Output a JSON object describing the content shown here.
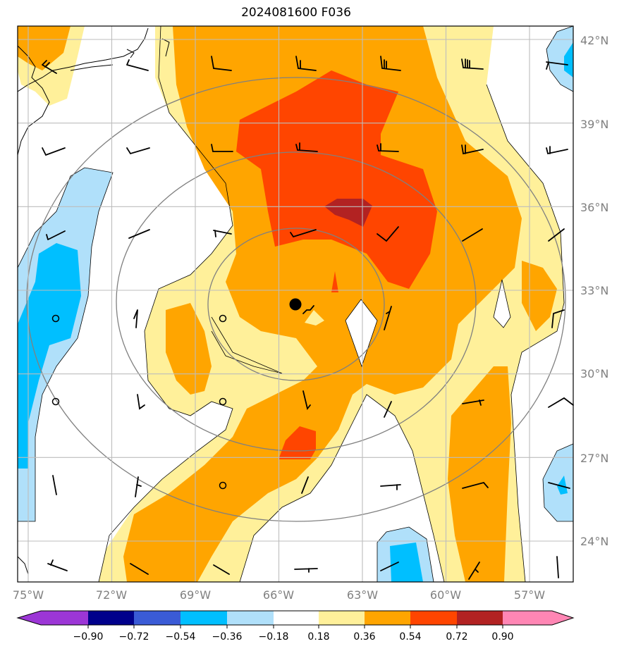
{
  "title": "2024081600 F036",
  "map": {
    "lon_labels": [
      "75°W",
      "72°W",
      "69°W",
      "66°W",
      "63°W",
      "60°W",
      "57°W"
    ],
    "lat_labels": [
      "42°N",
      "39°N",
      "36°N",
      "33°N",
      "30°N",
      "27°N",
      "24°N"
    ],
    "lon_values": [
      -75,
      -72,
      -69,
      -66,
      -63,
      -60,
      -57
    ],
    "lat_values": [
      42,
      39,
      36,
      33,
      30,
      27,
      24
    ],
    "extent": {
      "lon": [
        -75,
        -55
      ],
      "lat": [
        22.5,
        42.5
      ]
    },
    "storm_center": {
      "lon": -65.3,
      "lat": 32.5
    },
    "range_rings": 3,
    "gridlines": true
  },
  "colorbar": {
    "ticks": [
      "−0.90",
      "−0.72",
      "−0.54",
      "−0.36",
      "−0.18",
      "0.18",
      "0.36",
      "0.54",
      "0.72",
      "0.90"
    ],
    "colors": [
      "#9c36d6",
      "#00008b",
      "#3a5bd6",
      "#00bfff",
      "#b0e0fa",
      "#ffffff",
      "#fff09a",
      "#ffa500",
      "#ff4500",
      "#b22222",
      "#ff86b4"
    ],
    "extend": "both"
  }
}
